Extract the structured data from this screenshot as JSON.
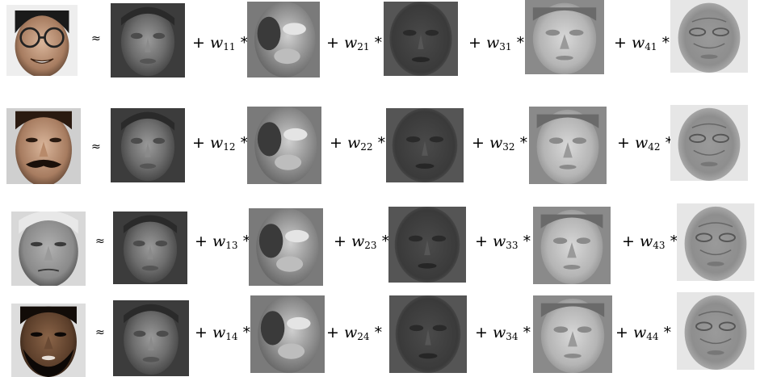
{
  "approx_symbol": "≈",
  "plus_symbol": "+",
  "times_symbol": "*",
  "weight_letter": "w",
  "rows": [
    {
      "input_face": "face-glasses",
      "weights": [
        "11",
        "21",
        "31",
        "41"
      ]
    },
    {
      "input_face": "face-mustache",
      "weights": [
        "12",
        "22",
        "32",
        "42"
      ]
    },
    {
      "input_face": "face-older-man",
      "weights": [
        "13",
        "23",
        "33",
        "43"
      ]
    },
    {
      "input_face": "face-beard",
      "weights": [
        "14",
        "24",
        "34",
        "44"
      ]
    }
  ],
  "basis_faces": [
    "mean-face",
    "eigenface-1",
    "eigenface-2",
    "eigenface-3",
    "eigenface-4"
  ],
  "colors": {
    "background": "#ffffff",
    "text": "#000000"
  }
}
